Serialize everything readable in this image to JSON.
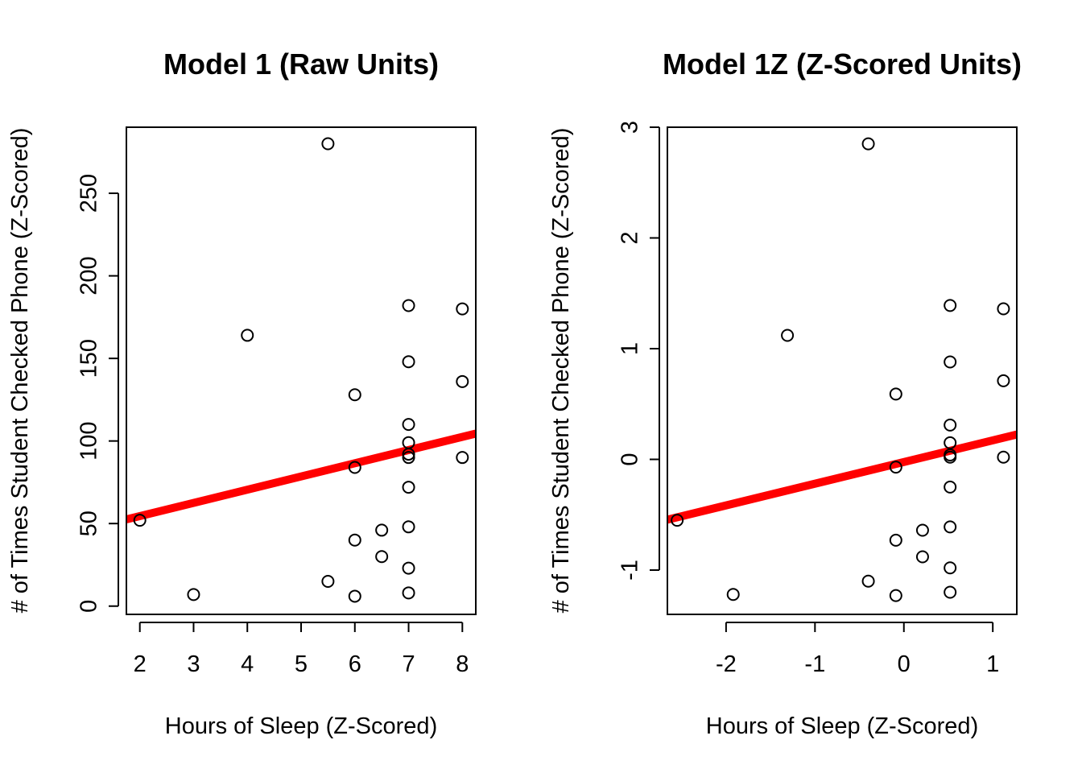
{
  "chart_data": [
    {
      "type": "scatter",
      "title": "Model 1 (Raw Units)",
      "xlabel": "Hours of Sleep (Z-Scored)",
      "ylabel": "# of Times Student Checked Phone (Z-Scored)",
      "xlim": [
        1.75,
        8.25
      ],
      "ylim": [
        -5,
        290
      ],
      "xticks": [
        2,
        3,
        4,
        5,
        6,
        7,
        8
      ],
      "yticks": [
        0,
        50,
        100,
        150,
        200,
        250
      ],
      "points": [
        [
          2,
          52
        ],
        [
          3,
          7
        ],
        [
          4,
          164
        ],
        [
          5.5,
          280
        ],
        [
          5.5,
          15
        ],
        [
          6,
          128
        ],
        [
          6,
          84
        ],
        [
          6,
          40
        ],
        [
          6,
          6
        ],
        [
          6.5,
          46
        ],
        [
          6.5,
          30
        ],
        [
          7,
          182
        ],
        [
          7,
          148
        ],
        [
          7,
          110
        ],
        [
          7,
          99
        ],
        [
          7,
          92
        ],
        [
          7,
          90
        ],
        [
          7,
          72
        ],
        [
          7,
          48
        ],
        [
          7,
          23
        ],
        [
          7,
          8
        ],
        [
          8,
          180
        ],
        [
          8,
          136
        ],
        [
          8,
          90
        ]
      ],
      "regression_line": {
        "x": [
          1.75,
          8.25
        ],
        "y": [
          52.5,
          104.5
        ],
        "color": "#ff0000"
      },
      "grid": false,
      "legend": "none"
    },
    {
      "type": "scatter",
      "title": "Model 1Z (Z-Scored Units)",
      "xlabel": "Hours of Sleep (Z-Scored)",
      "ylabel": "# of Times Student Checked Phone (Z-Scored)",
      "xlim": [
        -2.66,
        1.27
      ],
      "ylim": [
        -1.4,
        3.0
      ],
      "xticks": [
        -2,
        -1,
        0,
        1
      ],
      "yticks": [
        -1,
        0,
        1,
        2,
        3
      ],
      "points": [
        [
          -2.55,
          -0.55
        ],
        [
          -1.92,
          -1.22
        ],
        [
          -1.31,
          1.12
        ],
        [
          -0.4,
          2.85
        ],
        [
          -0.4,
          -1.1
        ],
        [
          -0.09,
          0.59
        ],
        [
          -0.09,
          -0.07
        ],
        [
          -0.09,
          -0.73
        ],
        [
          -0.09,
          -1.23
        ],
        [
          0.21,
          -0.64
        ],
        [
          0.21,
          -0.88
        ],
        [
          0.52,
          1.39
        ],
        [
          0.52,
          0.88
        ],
        [
          0.52,
          0.31
        ],
        [
          0.52,
          0.15
        ],
        [
          0.52,
          0.04
        ],
        [
          0.52,
          0.02
        ],
        [
          0.52,
          -0.25
        ],
        [
          0.52,
          -0.61
        ],
        [
          0.52,
          -0.98
        ],
        [
          0.52,
          -1.2
        ],
        [
          1.12,
          1.36
        ],
        [
          1.12,
          0.71
        ],
        [
          1.12,
          0.02
        ]
      ],
      "regression_line": {
        "x": [
          -2.66,
          1.27
        ],
        "y": [
          -0.545,
          0.225
        ],
        "color": "#ff0000"
      },
      "grid": false,
      "legend": "none"
    }
  ]
}
